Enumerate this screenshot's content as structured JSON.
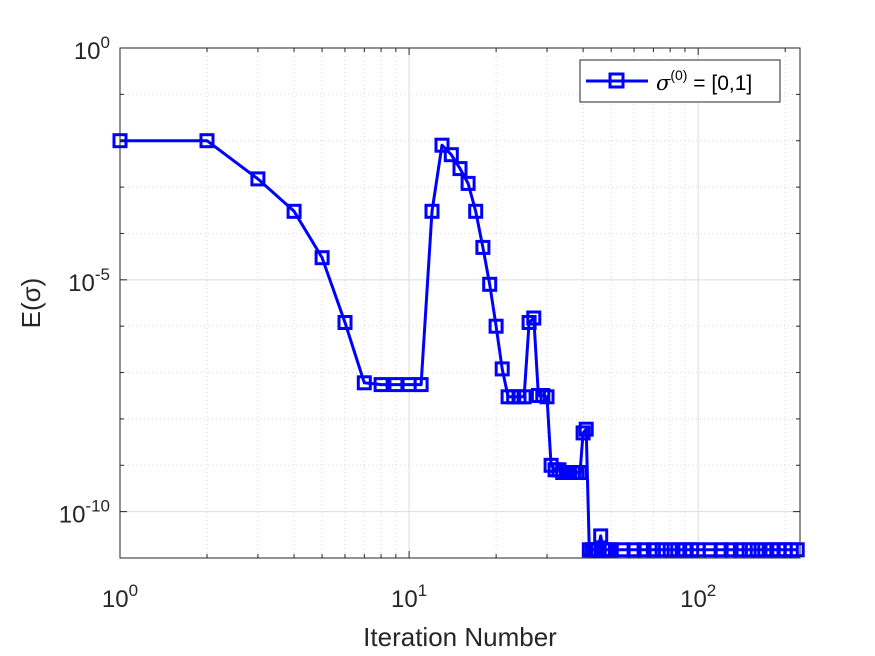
{
  "chart_data": {
    "type": "line",
    "xscale": "log",
    "yscale": "log",
    "xlabel": "Iteration Number",
    "ylabel": "E(σ)",
    "xlim": [
      1,
      225
    ],
    "ylim": [
      1e-11,
      1
    ],
    "grid": true,
    "minor_grid": true,
    "legend_position": "top-right",
    "x_ticks": [
      {
        "value": 1,
        "base": "10",
        "exp": "0"
      },
      {
        "value": 10,
        "base": "10",
        "exp": "1"
      },
      {
        "value": 100,
        "base": "10",
        "exp": "2"
      }
    ],
    "y_ticks": [
      {
        "value": 1,
        "base": "10",
        "exp": "0"
      },
      {
        "value": 1e-05,
        "base": "10",
        "exp": "-5"
      },
      {
        "value": 1e-10,
        "base": "10",
        "exp": "-10"
      }
    ],
    "series": [
      {
        "name": "σ(0) = [0,1]",
        "legend_parts": {
          "sym": "σ",
          "sup": "(0)",
          "rest": " = [0,1]"
        },
        "color": "#0000ff",
        "marker": "square",
        "x": [
          1,
          2,
          3,
          4,
          5,
          6,
          7,
          8,
          9,
          10,
          11,
          12,
          13,
          14,
          15,
          16,
          17,
          18,
          19,
          20,
          21,
          22,
          23,
          24,
          25,
          26,
          27,
          28,
          29,
          30,
          31,
          32,
          33,
          34,
          35,
          36,
          37,
          38,
          39,
          40,
          41,
          42,
          43,
          44,
          45,
          46,
          47,
          48,
          49,
          50,
          55,
          60,
          65,
          70,
          75,
          80,
          85,
          90,
          95,
          100,
          110,
          120,
          130,
          140,
          150,
          160,
          170,
          180,
          190,
          200,
          210,
          220
        ],
        "y": [
          0.01,
          0.01,
          0.0015,
          0.0003,
          3e-05,
          1.2e-06,
          6e-08,
          5.5e-08,
          5.5e-08,
          5.5e-08,
          5.5e-08,
          0.0003,
          0.008,
          0.005,
          0.0025,
          0.0012,
          0.0003,
          5e-05,
          8e-06,
          1e-06,
          1.2e-07,
          3e-08,
          3e-08,
          3e-08,
          3e-08,
          1.2e-06,
          1.5e-06,
          3.2e-08,
          3.2e-08,
          3e-08,
          1e-09,
          8e-10,
          8e-10,
          7e-10,
          7e-10,
          7e-10,
          7e-10,
          7e-10,
          7e-10,
          5e-09,
          6e-09,
          1.5e-11,
          1.5e-11,
          1.5e-11,
          1.5e-11,
          3e-11,
          1.5e-11,
          1.5e-11,
          1.5e-11,
          1.5e-11,
          1.5e-11,
          1.5e-11,
          1.5e-11,
          1.5e-11,
          1.5e-11,
          1.5e-11,
          1.5e-11,
          1.5e-11,
          1.5e-11,
          1.5e-11,
          1.5e-11,
          1.5e-11,
          1.5e-11,
          1.5e-11,
          1.5e-11,
          1.5e-11,
          1.5e-11,
          1.5e-11,
          1.5e-11,
          1.5e-11,
          1.5e-11,
          1.5e-11
        ]
      }
    ]
  }
}
